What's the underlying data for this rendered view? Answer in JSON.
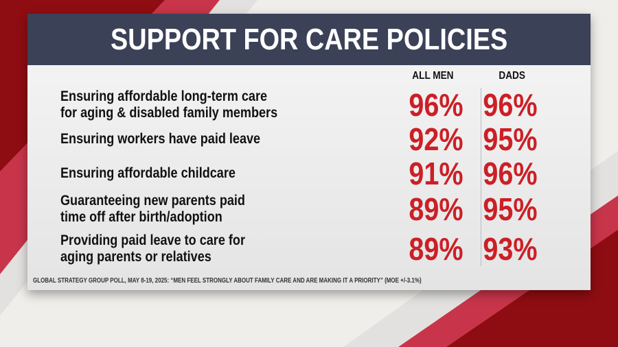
{
  "title": "SUPPORT FOR CARE POLICIES",
  "colors": {
    "header": "#3b4157",
    "value": "#cc1f26",
    "stripe_dark": "#8e0d12",
    "stripe_light": "#c8354a"
  },
  "chart_data": {
    "type": "table",
    "title": "SUPPORT FOR CARE POLICIES",
    "columns": [
      "ALL MEN",
      "DADS"
    ],
    "rows": [
      {
        "label_lines": [
          "Ensuring affordable long-term care",
          "for aging & disabled family members"
        ],
        "values": [
          "96%",
          "96%"
        ]
      },
      {
        "label_lines": [
          "Ensuring workers have paid leave"
        ],
        "values": [
          "92%",
          "95%"
        ]
      },
      {
        "label_lines": [
          "Ensuring affordable childcare"
        ],
        "values": [
          "91%",
          "96%"
        ]
      },
      {
        "label_lines": [
          "Guaranteeing new parents paid",
          "time off after birth/adoption"
        ],
        "values": [
          "89%",
          "95%"
        ]
      },
      {
        "label_lines": [
          "Providing paid leave to care for",
          "aging parents or relatives"
        ],
        "values": [
          "89%",
          "93%"
        ]
      }
    ]
  },
  "footer": "GLOBAL STRATEGY GROUP POLL, MAY 8-19, 2025: “MEN FEEL STRONGLY ABOUT FAMILY CARE AND ARE MAKING IT A PRIORITY” (MOE +/-3.1%)"
}
